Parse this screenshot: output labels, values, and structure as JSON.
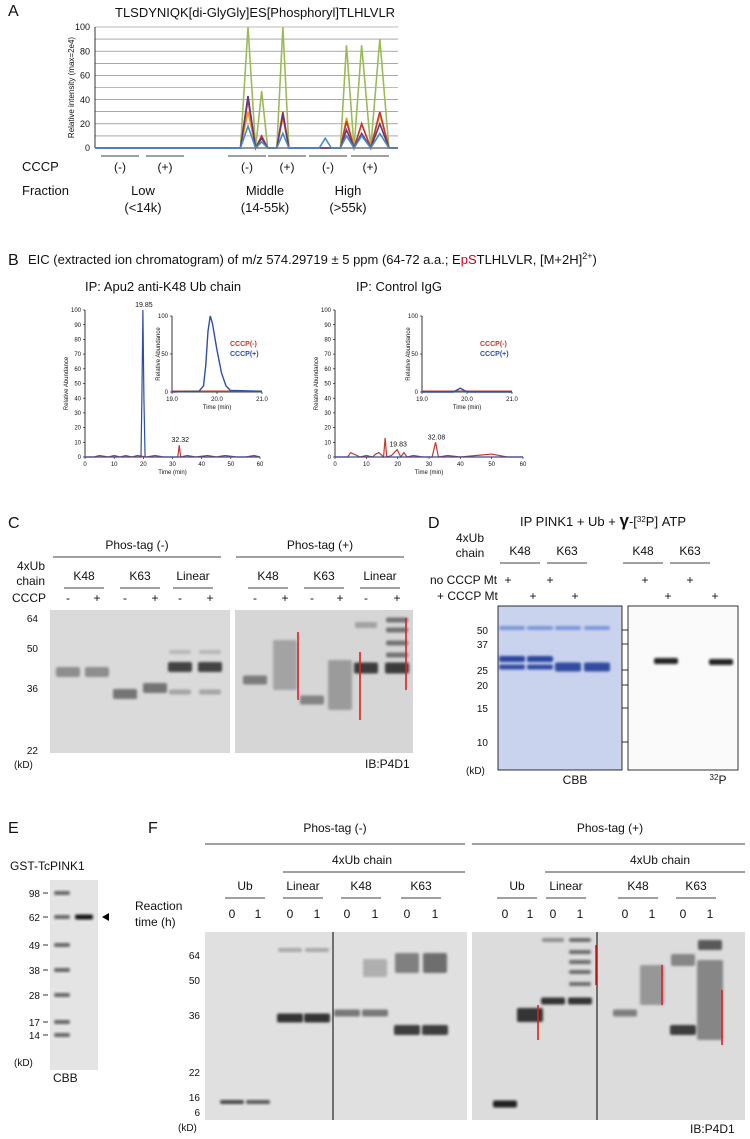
{
  "panel_labels": [
    "A",
    "B",
    "C",
    "D",
    "E",
    "F"
  ],
  "chart_data": [
    {
      "type": "line",
      "title": "TLSDYNIQK[di-GlyGly]ES[Phosphoryl]TLHLVLR",
      "y_label": "Relative intensity (max=2e4)",
      "xlim": [
        0,
        100
      ],
      "ylim": [
        0,
        100
      ],
      "yticks": [
        0,
        20,
        40,
        60,
        80,
        100
      ],
      "yminorticks": [
        10,
        30,
        50,
        70,
        90
      ],
      "grid": true,
      "x": [
        0,
        48,
        50.5,
        53,
        55,
        57,
        60,
        62,
        64,
        74,
        76,
        78,
        81,
        83,
        85.5,
        88,
        91,
        94,
        97,
        100
      ],
      "series": [
        {
          "color": "#9bbb59",
          "values": [
            0,
            0,
            100,
            0,
            47,
            0,
            0,
            100,
            0,
            0,
            0,
            0,
            0,
            85,
            0,
            85,
            0,
            90,
            0,
            0
          ]
        },
        {
          "color": "#f39c12",
          "values": [
            0,
            0,
            30,
            0,
            9,
            0,
            0,
            25,
            0,
            0,
            0,
            0,
            0,
            25,
            0,
            20,
            0,
            28,
            0,
            0
          ]
        },
        {
          "color": "#c0392b",
          "values": [
            0,
            0,
            40,
            0,
            10,
            0,
            0,
            30,
            0,
            0,
            0,
            0,
            0,
            22,
            0,
            20,
            0,
            30,
            0,
            0
          ]
        },
        {
          "color": "#6c3483",
          "values": [
            0,
            0,
            43,
            0,
            8,
            0,
            0,
            28,
            0,
            0,
            0,
            0,
            0,
            15,
            0,
            12,
            0,
            20,
            0,
            0
          ]
        },
        {
          "color": "#3f8fc5",
          "values": [
            0,
            0,
            18,
            0,
            5,
            0,
            0,
            12,
            0,
            0,
            8,
            0,
            0,
            10,
            0,
            10,
            0,
            12,
            0,
            0
          ]
        }
      ],
      "cccp_label": "CCCP",
      "cccp": [
        "(-)",
        "(+)",
        "(-)",
        "(+)",
        "(-)",
        "(+)"
      ],
      "fraction_label": "Fraction",
      "fractions": [
        [
          "Low",
          "(<14k)"
        ],
        [
          "Middle",
          "(14-55k)"
        ],
        [
          "High",
          "(>55k)"
        ]
      ]
    },
    {
      "type": "line",
      "title": "IP: Apu2 anti-K48 Ub chain",
      "x_label": "Time (min)",
      "y_label": "Relative Abundance",
      "xlim": [
        0,
        60
      ],
      "xticks": [
        0,
        10,
        20,
        30,
        40,
        50,
        60
      ],
      "ylim": [
        0,
        100
      ],
      "yticks": [
        0,
        10,
        20,
        30,
        40,
        50,
        60,
        70,
        80,
        90,
        100
      ],
      "series": [
        {
          "color": "#c0392b",
          "x": [
            0,
            3,
            5,
            8,
            10,
            12,
            14,
            16,
            18,
            21,
            24,
            27,
            30,
            31.8,
            32.32,
            32.8,
            35,
            38,
            42,
            45,
            48,
            52,
            55,
            58,
            60
          ],
          "values": [
            0,
            0,
            1,
            0,
            1,
            0,
            1,
            0,
            1,
            0,
            1,
            0,
            0,
            0,
            8,
            0,
            1,
            0,
            1,
            0,
            1,
            0,
            0,
            1,
            0
          ]
        },
        {
          "color": "#2c4fa3",
          "x": [
            0,
            19.2,
            19.5,
            19.85,
            20.2,
            20.6,
            60
          ],
          "values": [
            0,
            0,
            40,
            100,
            40,
            0,
            0
          ]
        }
      ],
      "peak_labels": [
        {
          "x": 19.85,
          "y": 100
        },
        {
          "x": 32.32,
          "y": 8
        }
      ]
    },
    {
      "type": "line",
      "x_label": "Time (min)",
      "y_label": "Relative Abundance",
      "xlim": [
        19,
        21
      ],
      "xticks": [
        {
          "value": 19,
          "label": "19.0"
        },
        {
          "value": 20,
          "label": "20.0"
        },
        {
          "value": 21,
          "label": "21.0"
        }
      ],
      "ylim": [
        0,
        100
      ],
      "yticks": [
        0,
        50,
        100
      ],
      "series": [
        {
          "name": "CCCP(-)",
          "color": "#c0392b",
          "x": [
            19,
            21
          ],
          "values": [
            1,
            1
          ]
        },
        {
          "name": "CCCP(+)",
          "color": "#2c4fa3",
          "x": [
            19,
            19.6,
            19.7,
            19.75,
            19.8,
            19.85,
            19.9,
            20,
            20.1,
            20.2,
            20.3,
            21
          ],
          "values": [
            0,
            1,
            8,
            35,
            80,
            100,
            90,
            55,
            25,
            8,
            2,
            1
          ]
        }
      ]
    },
    {
      "type": "line",
      "title": "IP: Control IgG",
      "x_label": "Time (min)",
      "y_label": "Relative Abundance",
      "xlim": [
        0,
        60
      ],
      "xticks": [
        0,
        10,
        20,
        30,
        40,
        50,
        60
      ],
      "ylim": [
        0,
        100
      ],
      "yticks": [
        0,
        10,
        20,
        30,
        40,
        50,
        60,
        70,
        80,
        90,
        100
      ],
      "series": [
        {
          "color": "#c0392b",
          "x": [
            0,
            4,
            5,
            8,
            10,
            12,
            13,
            14,
            15.5,
            16,
            16.5,
            18,
            19.83,
            21,
            22,
            23,
            25,
            28,
            31,
            32.08,
            33,
            36,
            40,
            45,
            50,
            55,
            60
          ],
          "values": [
            0,
            0,
            3,
            0,
            1,
            0,
            2,
            3,
            0,
            13,
            0,
            1,
            5,
            0,
            3,
            0,
            1,
            0,
            0,
            10,
            0,
            1,
            0,
            1,
            2,
            0,
            0
          ]
        },
        {
          "color": "#2c4fa3",
          "x": [
            0,
            60
          ],
          "values": [
            0,
            0
          ]
        }
      ],
      "peak_labels": [
        {
          "x": 19.83,
          "y": 5
        },
        {
          "x": 32.08,
          "y": 10
        }
      ]
    },
    {
      "type": "line",
      "x_label": "Time (min)",
      "y_label": "Relative Abundance",
      "xlim": [
        19,
        21
      ],
      "xticks": [
        {
          "value": 19,
          "label": "19.0"
        },
        {
          "value": 20,
          "label": "20.0"
        },
        {
          "value": 21,
          "label": "21.0"
        }
      ],
      "ylim": [
        0,
        100
      ],
      "yticks": [
        0,
        50,
        100
      ],
      "series": [
        {
          "name": "CCCP(-)",
          "color": "#c0392b",
          "x": [
            19,
            21
          ],
          "values": [
            1,
            1
          ]
        },
        {
          "name": "CCCP(+)",
          "color": "#2c4fa3",
          "x": [
            19,
            19.7,
            19.85,
            20,
            21
          ],
          "values": [
            0,
            0,
            5,
            0,
            0
          ]
        }
      ]
    }
  ],
  "panel_b": {
    "header": [
      "EIC (extracted ion chromatogram) of m/z 574.29719 ± 5 ppm (64-72 a.a.; E",
      "pS",
      "TLHLVLR, [M+2H]",
      "2+",
      ")"
    ]
  },
  "panel_c": {
    "phos_tag": [
      "Phos-tag (-)",
      "Phos-tag (+)"
    ],
    "chain_label": [
      "4xUb",
      "chain"
    ],
    "chains": [
      "K48",
      "K63",
      "Linear"
    ],
    "cccp_label": "CCCP",
    "cccp": [
      "-",
      "+"
    ],
    "mw": [
      64,
      50,
      36,
      22
    ],
    "unit": "(kD)",
    "blot": "IB:P4D1"
  },
  "panel_d": {
    "title": [
      "IP PINK1 + Ub + ",
      "γ",
      "-[",
      "32",
      "P] ATP"
    ],
    "chain_label": [
      "4xUb",
      "chain"
    ],
    "chains": [
      "K48",
      "K63"
    ],
    "conditions": [
      "no CCCP Mt",
      "+ CCCP Mt"
    ],
    "plus": "+",
    "mw": [
      50,
      37,
      25,
      20,
      15,
      10
    ],
    "unit": "(kD)",
    "stain": "CBB",
    "radio": [
      "32",
      "P"
    ]
  },
  "panel_e": {
    "title": "GST-TcPINK1",
    "mw": [
      98,
      62,
      49,
      38,
      28,
      17,
      14
    ],
    "unit": "(kD)",
    "stain": "CBB"
  },
  "panel_f": {
    "phos_tag": [
      "Phos-tag (-)",
      "Phos-tag (+)"
    ],
    "chain_group": "4xUb chain",
    "lanes": [
      "Ub",
      "Linear",
      "K48",
      "K63"
    ],
    "time_label": [
      "Reaction",
      "time (h)"
    ],
    "times": [
      0,
      1
    ],
    "mw": [
      64,
      50,
      36,
      22,
      16,
      6
    ],
    "unit": "(kD)",
    "blot": "IB:P4D1"
  }
}
